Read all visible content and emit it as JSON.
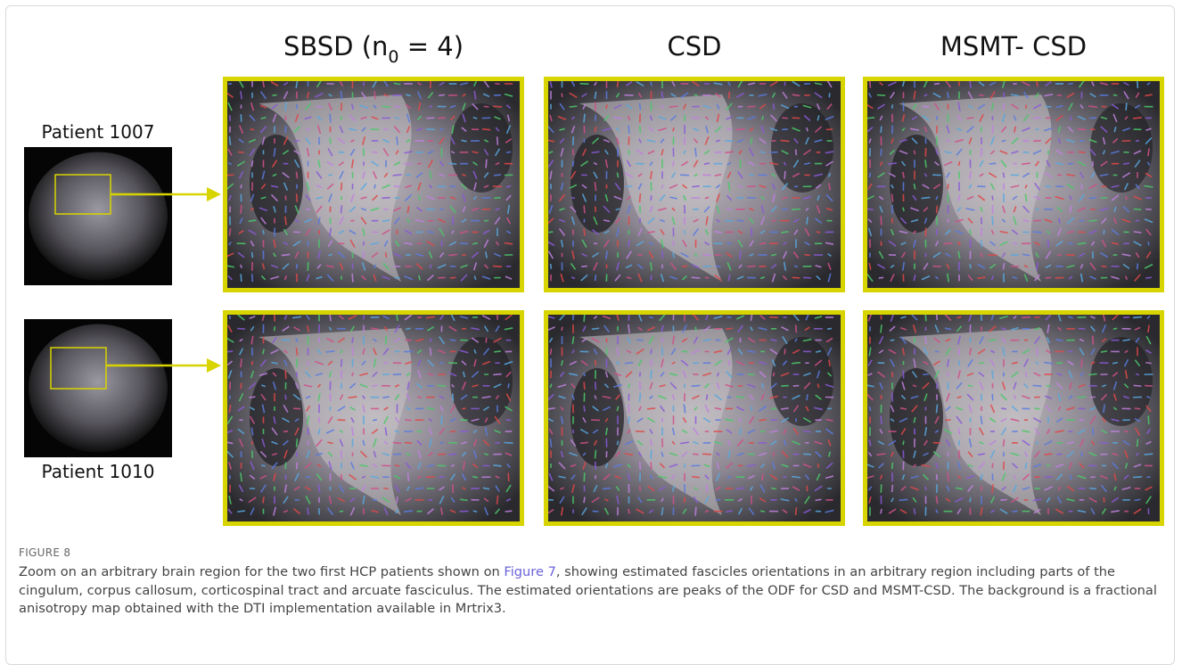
{
  "figure": {
    "column_titles": [
      {
        "text": "SBSD (n",
        "sub": "0",
        "after": " = 4)"
      },
      {
        "text": "CSD"
      },
      {
        "text": "MSMT- CSD"
      }
    ],
    "row_labels": [
      "Patient 1007",
      "Patient 1010"
    ],
    "label": "FIGURE 8",
    "caption": {
      "before": "Zoom on an arbitrary brain region for the two first HCP patients shown on ",
      "link": "Figure 7",
      "after": ", showing estimated fascicles orientations in an arbitrary region including parts of the cingulum, corpus callosum, corticospinal tract and arcuate fasciculus. The estimated orientations are peaks of the ODF for CSD and MSMT-CSD. The background is a fractional anisotropy map obtained with the DTI implementation available in Mrtrix3."
    }
  }
}
